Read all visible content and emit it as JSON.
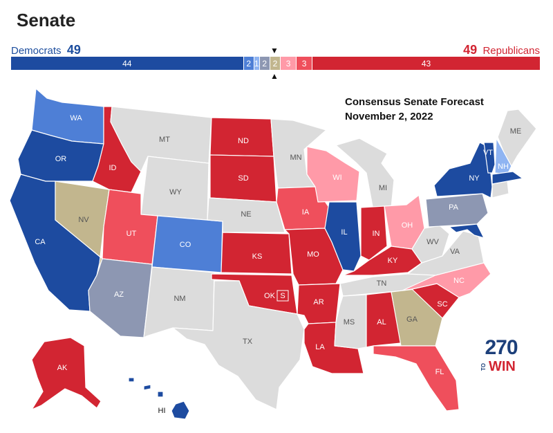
{
  "title": "Senate",
  "dem": {
    "name": "Democrats",
    "seats": "49"
  },
  "rep": {
    "name": "Republicans",
    "seats": "49"
  },
  "bar_segments": [
    {
      "value": 44,
      "label": "44",
      "color": "#1d4ba0"
    },
    {
      "value": 2,
      "label": "2",
      "color": "#4e7fd6"
    },
    {
      "value": 1,
      "label": "1",
      "color": "#8fb4f2"
    },
    {
      "value": 2,
      "label": "2",
      "color": "#8d97b2"
    },
    {
      "value": 2,
      "label": "2",
      "color": "#c2b68e"
    },
    {
      "value": 3,
      "label": "3",
      "color": "#ff9aa8"
    },
    {
      "value": 3,
      "label": "3",
      "color": "#ef4f5c"
    },
    {
      "value": 43,
      "label": "43",
      "color": "#d22532"
    }
  ],
  "forecast": {
    "line1": "Consensus Senate Forecast",
    "line2": "November 2, 2022"
  },
  "legend_colors": {
    "dem_safe": "#1d4ba0",
    "dem_likely": "#4e7fd6",
    "dem_lean": "#8fb4f2",
    "tilt_dem": "#8d97b2",
    "toss_up": "#c2b68e",
    "rep_lean": "#ff9aa8",
    "rep_likely": "#ef4f5c",
    "rep_safe": "#d22532",
    "no_race": "#dcdcdc"
  },
  "map_states": {
    "WA": {
      "label": "WA",
      "category": "dem_likely"
    },
    "OR": {
      "label": "OR",
      "category": "dem_safe"
    },
    "CA": {
      "label": "CA",
      "category": "dem_safe"
    },
    "NV": {
      "label": "NV",
      "category": "toss_up"
    },
    "ID": {
      "label": "ID",
      "category": "rep_safe"
    },
    "MT": {
      "label": "MT",
      "category": "no_race"
    },
    "WY": {
      "label": "WY",
      "category": "no_race"
    },
    "UT": {
      "label": "UT",
      "category": "rep_likely"
    },
    "AZ": {
      "label": "AZ",
      "category": "tilt_dem"
    },
    "CO": {
      "label": "CO",
      "category": "dem_likely"
    },
    "NM": {
      "label": "NM",
      "category": "no_race"
    },
    "ND": {
      "label": "ND",
      "category": "rep_safe"
    },
    "SD": {
      "label": "SD",
      "category": "rep_safe"
    },
    "NE": {
      "label": "NE",
      "category": "no_race"
    },
    "KS": {
      "label": "KS",
      "category": "rep_safe"
    },
    "OK": {
      "label": "OK",
      "category": "rep_safe"
    },
    "TX": {
      "label": "TX",
      "category": "no_race"
    },
    "MN": {
      "label": "MN",
      "category": "no_race"
    },
    "IA": {
      "label": "IA",
      "category": "rep_likely"
    },
    "MO": {
      "label": "MO",
      "category": "rep_safe"
    },
    "AR": {
      "label": "AR",
      "category": "rep_safe"
    },
    "LA": {
      "label": "LA",
      "category": "rep_safe"
    },
    "WI": {
      "label": "WI",
      "category": "rep_lean"
    },
    "IL": {
      "label": "IL",
      "category": "dem_safe"
    },
    "MI": {
      "label": "MI",
      "category": "no_race"
    },
    "IN": {
      "label": "IN",
      "category": "rep_safe"
    },
    "OH": {
      "label": "OH",
      "category": "rep_lean"
    },
    "KY": {
      "label": "KY",
      "category": "rep_safe"
    },
    "TN": {
      "label": "TN",
      "category": "no_race"
    },
    "MS": {
      "label": "MS",
      "category": "no_race"
    },
    "AL": {
      "label": "AL",
      "category": "rep_safe"
    },
    "GA": {
      "label": "GA",
      "category": "toss_up"
    },
    "FL": {
      "label": "FL",
      "category": "rep_likely"
    },
    "SC": {
      "label": "SC",
      "category": "rep_safe"
    },
    "NC": {
      "label": "NC",
      "category": "rep_lean"
    },
    "VA": {
      "label": "VA",
      "category": "no_race"
    },
    "WV": {
      "label": "WV",
      "category": "no_race"
    },
    "PA": {
      "label": "PA",
      "category": "tilt_dem"
    },
    "NY": {
      "label": "NY",
      "category": "dem_safe"
    },
    "VT": {
      "label": "VT",
      "category": "dem_safe"
    },
    "NH": {
      "label": "NH",
      "category": "dem_lean"
    },
    "ME": {
      "label": "ME",
      "category": "no_race"
    },
    "AK": {
      "label": "AK",
      "category": "rep_safe"
    },
    "HI": {
      "label": "HI",
      "category": "dem_safe"
    },
    "OK_special": {
      "label": "S",
      "category": "rep_safe"
    }
  },
  "logo": {
    "number": "270",
    "to": "TO",
    "win": "WIN",
    "navy": "#1c3f7a",
    "red": "#d22532"
  }
}
